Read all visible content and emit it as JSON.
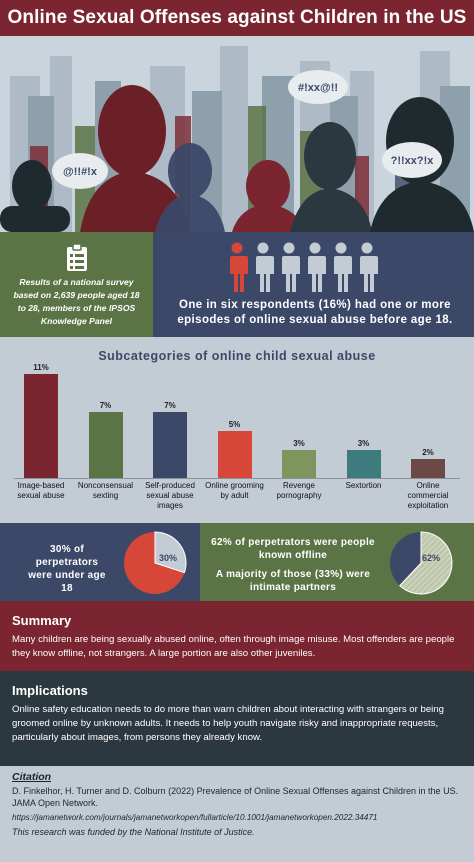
{
  "title": "Online Sexual Offenses against Children in the US",
  "hero": {
    "bubbles": [
      "@!!#!x",
      "#!xx@!!",
      "?!!xx?!x"
    ]
  },
  "survey": {
    "icon": "clipboard-icon",
    "text": "Results of a national survey based on 2,639 people aged 18 to 28, members of the IPSOS Knowledge Panel"
  },
  "stat": {
    "icon": "person-icon",
    "people_total": 6,
    "people_highlighted": 1,
    "highlight_color": "#d6473a",
    "text": "One in six respondents (16%) had one or more episodes of online sexual abuse before age 18."
  },
  "chart_data": {
    "type": "bar",
    "title": "Subcategories of online child sexual abuse",
    "categories": [
      "Image-based sexual abuse",
      "Nonconsensual sexting",
      "Self-produced sexual abuse images",
      "Online grooming by adult",
      "Revenge pornography",
      "Sextortion",
      "Online commercial exploitation"
    ],
    "values": [
      11,
      7,
      7,
      5,
      3,
      3,
      2
    ],
    "value_labels": [
      "11%",
      "7%",
      "7%",
      "5%",
      "3%",
      "3%",
      "2%"
    ],
    "colors": [
      "#7a2530",
      "#5b7446",
      "#3b4868",
      "#d6473a",
      "#7f955e",
      "#3e7b7e",
      "#6b4a45"
    ],
    "ylim": [
      0,
      11
    ]
  },
  "perpetrators": {
    "left_text": "30% of perpetrators were under age 18",
    "left_pie": {
      "value": 30,
      "label": "30%",
      "colors": [
        "#c3ccd4",
        "#d6473a"
      ]
    },
    "right_text_1": "62% of perpetrators were people known offline",
    "right_text_2": "A majority of those (33%) were intimate partners",
    "right_pie": {
      "value": 62,
      "label": "62%",
      "colors": [
        "#c9d2b8",
        "#3b4868"
      ]
    }
  },
  "summary": {
    "heading": "Summary",
    "text": "Many children are being sexually abused online, often through image misuse. Most offenders are people they know offline, not strangers. A large portion are also other juveniles."
  },
  "implications": {
    "heading": "Implications",
    "text": "Online safety education needs to do more than warn children about interacting with strangers or being groomed online by unknown adults. It needs to help youth navigate risky and inappropriate requests, particularly about images, from persons they already know."
  },
  "citation": {
    "heading": "Citation",
    "ref": "D. Finkelhor, H. Turner and D. Colburn (2022) Prevalence of Online Sexual Offenses against Children in the US. JAMA Open Network.",
    "url": "https://jamanetwork.com/journals/jamanetworkopen/fullarticle/10.1001/jamanetworkopen.2022.34471",
    "funding": "This research was funded by the National Institute of Justice."
  }
}
